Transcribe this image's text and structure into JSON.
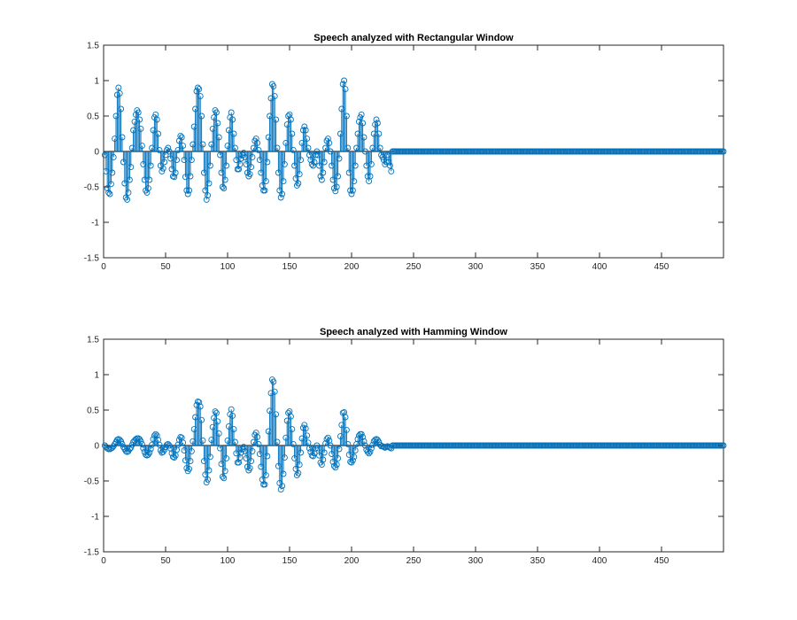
{
  "chart_data": [
    {
      "type": "stem",
      "title": "Speech analyzed with Rectangular Window",
      "xlabel": "",
      "ylabel": "",
      "xlim": [
        0,
        500
      ],
      "ylim": [
        -1.5,
        1.5
      ],
      "xticks": [
        0,
        50,
        100,
        150,
        200,
        250,
        300,
        350,
        400,
        450
      ],
      "yticks": [
        -1.5,
        -1,
        -0.5,
        0,
        0.5,
        1,
        1.5
      ],
      "grid": false,
      "color": "#0072BD",
      "x_start": 1,
      "values": [
        -0.05,
        -0.28,
        -0.52,
        -0.58,
        -0.6,
        -0.46,
        -0.3,
        -0.08,
        0.18,
        0.5,
        0.8,
        0.9,
        0.82,
        0.6,
        0.2,
        -0.15,
        -0.45,
        -0.65,
        -0.68,
        -0.58,
        -0.4,
        -0.22,
        0.05,
        0.3,
        0.42,
        0.52,
        0.58,
        0.55,
        0.45,
        0.32,
        0.08,
        -0.18,
        -0.4,
        -0.55,
        -0.58,
        -0.52,
        -0.4,
        -0.2,
        0.05,
        0.3,
        0.48,
        0.52,
        0.45,
        0.25,
        0.02,
        -0.2,
        -0.28,
        -0.24,
        -0.15,
        -0.05,
        0.02,
        0.05,
        0.0,
        -0.1,
        -0.25,
        -0.35,
        -0.36,
        -0.3,
        -0.12,
        0.02,
        0.15,
        0.22,
        0.2,
        0.08,
        -0.12,
        -0.36,
        -0.55,
        -0.6,
        -0.55,
        -0.35,
        -0.12,
        0.1,
        0.35,
        0.6,
        0.85,
        0.9,
        0.88,
        0.78,
        0.5,
        0.1,
        -0.3,
        -0.55,
        -0.68,
        -0.62,
        -0.45,
        -0.2,
        0.1,
        0.32,
        0.48,
        0.58,
        0.55,
        0.4,
        0.2,
        -0.05,
        -0.3,
        -0.5,
        -0.52,
        -0.4,
        -0.2,
        0.08,
        0.3,
        0.48,
        0.55,
        0.45,
        0.25,
        0.05,
        -0.12,
        -0.25,
        -0.25,
        -0.18,
        -0.1,
        -0.05,
        -0.02,
        -0.08,
        -0.18,
        -0.3,
        -0.35,
        -0.32,
        -0.22,
        -0.08,
        0.05,
        0.15,
        0.18,
        0.12,
        0.02,
        -0.12,
        -0.3,
        -0.48,
        -0.55,
        -0.55,
        -0.42,
        -0.15,
        0.2,
        0.5,
        0.75,
        0.95,
        0.92,
        0.78,
        0.45,
        0.05,
        -0.3,
        -0.55,
        -0.65,
        -0.6,
        -0.42,
        -0.18,
        0.12,
        0.38,
        0.5,
        0.52,
        0.45,
        0.25,
        0.02,
        -0.2,
        -0.38,
        -0.48,
        -0.45,
        -0.32,
        -0.12,
        0.12,
        0.3,
        0.35,
        0.3,
        0.18,
        0.05,
        -0.05,
        -0.12,
        -0.18,
        -0.2,
        -0.15,
        -0.05,
        0.0,
        -0.05,
        -0.2,
        -0.35,
        -0.4,
        -0.3,
        -0.15,
        0.05,
        0.15,
        0.18,
        0.12,
        0.0,
        -0.2,
        -0.4,
        -0.52,
        -0.56,
        -0.5,
        -0.35,
        -0.1,
        0.25,
        0.6,
        0.95,
        1.0,
        0.88,
        0.5,
        0.05,
        -0.3,
        -0.55,
        -0.6,
        -0.55,
        -0.42,
        -0.2,
        0.05,
        0.25,
        0.42,
        0.48,
        0.52,
        0.4,
        0.2,
        0.0,
        -0.2,
        -0.35,
        -0.42,
        -0.35,
        -0.18,
        0.05,
        0.25,
        0.38,
        0.45,
        0.4,
        0.25,
        0.05,
        -0.05,
        -0.08,
        -0.12,
        -0.18,
        -0.15,
        -0.05,
        -0.15,
        -0.2,
        -0.28
      ]
    },
    {
      "type": "stem",
      "title": "Speech analyzed with Hamming Window",
      "xlabel": "",
      "ylabel": "",
      "xlim": [
        0,
        500
      ],
      "ylim": [
        -1.5,
        1.5
      ],
      "xticks": [
        0,
        50,
        100,
        150,
        200,
        250,
        300,
        350,
        400,
        450
      ],
      "yticks": [
        -1.5,
        -1,
        -0.5,
        0,
        0.5,
        1,
        1.5
      ],
      "grid": false,
      "color": "#0072BD",
      "x_start": 1,
      "window": "hamming",
      "window_length": 250
    }
  ]
}
